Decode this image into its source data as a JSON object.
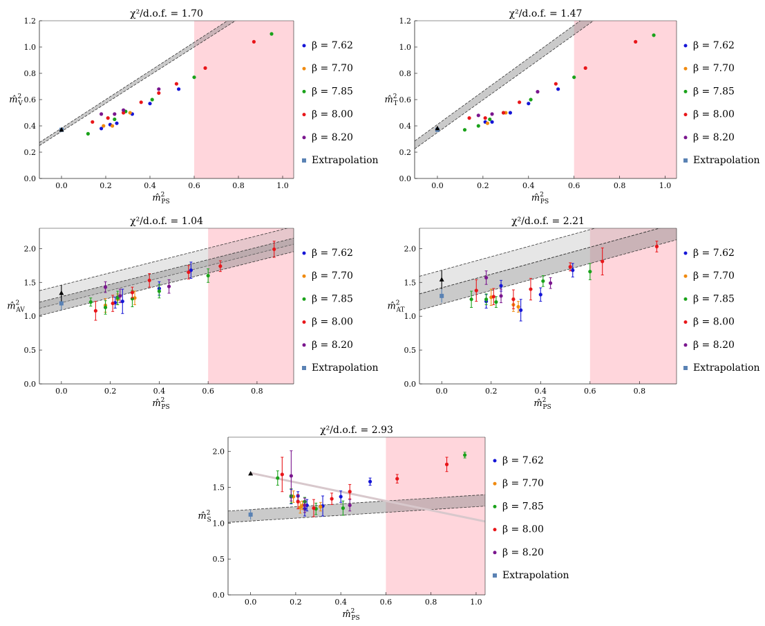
{
  "colors": {
    "7.62": "#1515d6",
    "7.70": "#f08a10",
    "7.85": "#1aa21a",
    "8.00": "#e8161a",
    "8.20": "#7a168e",
    "extrapolation": "#5a82b4",
    "chiral": "#000000",
    "shade": "#ffd6dc"
  },
  "chart_data": [
    {
      "type": "scatter",
      "title": "χ²/d.o.f. = 1.70",
      "xlabel": "m̂²PS",
      "ylabel": "m̂²V",
      "xlim": [
        -0.1,
        1.05
      ],
      "ylim": [
        0,
        1.2
      ],
      "xticks": [
        "0.0",
        "0.2",
        "0.4",
        "0.6",
        "0.8",
        "1.0"
      ],
      "yticks": [
        "0.0",
        "0.2",
        "0.4",
        "0.6",
        "0.8",
        "1.0",
        "1.2"
      ],
      "shaded_region_x": [
        0.6,
        1.05
      ],
      "legend": [
        "β = 7.62",
        "β = 7.70",
        "β = 7.85",
        "β = 8.00",
        "β = 8.20",
        "Extrapolation"
      ],
      "series": [
        {
          "name": "β = 7.62",
          "points": [
            [
              0.18,
              0.38
            ],
            [
              0.22,
              0.41
            ],
            [
              0.25,
              0.42
            ],
            [
              0.32,
              0.49
            ],
            [
              0.4,
              0.57
            ],
            [
              0.53,
              0.68
            ]
          ]
        },
        {
          "name": "β = 7.70",
          "points": [
            [
              0.19,
              0.4
            ],
            [
              0.23,
              0.4
            ],
            [
              0.31,
              0.5
            ]
          ]
        },
        {
          "name": "β = 7.85",
          "points": [
            [
              0.12,
              0.34
            ],
            [
              0.24,
              0.45
            ],
            [
              0.29,
              0.51
            ],
            [
              0.41,
              0.6
            ],
            [
              0.6,
              0.77
            ],
            [
              0.95,
              1.1
            ]
          ]
        },
        {
          "name": "β = 8.00",
          "points": [
            [
              0.14,
              0.43
            ],
            [
              0.21,
              0.46
            ],
            [
              0.28,
              0.5
            ],
            [
              0.36,
              0.58
            ],
            [
              0.44,
              0.65
            ],
            [
              0.52,
              0.72
            ],
            [
              0.65,
              0.84
            ],
            [
              0.87,
              1.04
            ]
          ]
        },
        {
          "name": "β = 8.20",
          "points": [
            [
              0.18,
              0.49
            ],
            [
              0.24,
              0.49
            ],
            [
              0.28,
              0.52
            ],
            [
              0.44,
              0.68
            ]
          ]
        }
      ],
      "extrapolation": [
        0.0,
        0.37
      ],
      "chiral_point": [
        0.0,
        0.37
      ],
      "band": {
        "y0": 0.37,
        "slope": 1.08,
        "w0": 0.012,
        "w1": 0.022,
        "upper_y0": null,
        "upper_slope": null
      }
    },
    {
      "type": "scatter",
      "title": "χ²/d.o.f. = 1.47",
      "xlabel": "m̂²PS",
      "ylabel": "m̂²T",
      "xlim": [
        -0.1,
        1.05
      ],
      "ylim": [
        0,
        1.2
      ],
      "xticks": [
        "0.0",
        "0.2",
        "0.4",
        "0.6",
        "0.8",
        "1.0"
      ],
      "yticks": [
        "0.0",
        "0.2",
        "0.4",
        "0.6",
        "0.8",
        "1.0",
        "1.2"
      ],
      "shaded_region_x": [
        0.6,
        1.05
      ],
      "legend": [
        "β = 7.62",
        "β = 7.70",
        "β = 7.85",
        "β = 8.00",
        "β = 8.20",
        "Extrapolation"
      ],
      "series": [
        {
          "name": "β = 7.62",
          "points": [
            [
              0.21,
              0.43
            ],
            [
              0.24,
              0.43
            ],
            [
              0.32,
              0.5
            ],
            [
              0.4,
              0.57
            ],
            [
              0.53,
              0.68
            ]
          ]
        },
        {
          "name": "β = 7.70",
          "points": [
            [
              0.22,
              0.42
            ],
            [
              0.3,
              0.5
            ]
          ]
        },
        {
          "name": "β = 7.85",
          "points": [
            [
              0.12,
              0.37
            ],
            [
              0.18,
              0.4
            ],
            [
              0.23,
              0.45
            ],
            [
              0.29,
              0.5
            ],
            [
              0.41,
              0.6
            ],
            [
              0.6,
              0.77
            ],
            [
              0.95,
              1.09
            ]
          ]
        },
        {
          "name": "β = 8.00",
          "points": [
            [
              0.14,
              0.46
            ],
            [
              0.21,
              0.46
            ],
            [
              0.29,
              0.5
            ],
            [
              0.36,
              0.58
            ],
            [
              0.52,
              0.72
            ],
            [
              0.65,
              0.84
            ],
            [
              0.87,
              1.04
            ]
          ]
        },
        {
          "name": "β = 8.20",
          "points": [
            [
              0.18,
              0.48
            ],
            [
              0.24,
              0.49
            ],
            [
              0.44,
              0.66
            ]
          ]
        }
      ],
      "extrapolation": [
        0.0,
        0.37
      ],
      "chiral_point": [
        0.0,
        0.38
      ],
      "band": {
        "y0": 0.38,
        "slope": 1.25,
        "w0": 0.03,
        "w1": 0.04,
        "upper_y0": null,
        "upper_slope": null
      }
    },
    {
      "type": "scatter",
      "title": "χ²/d.o.f. = 1.04",
      "xlabel": "m̂²PS",
      "ylabel": "m̂²AV",
      "xlim": [
        -0.09,
        0.95
      ],
      "ylim": [
        0,
        2.3
      ],
      "xticks": [
        "0.0",
        "0.2",
        "0.4",
        "0.6",
        "0.8"
      ],
      "yticks": [
        "0.0",
        "0.5",
        "1.0",
        "1.5",
        "2.0"
      ],
      "shaded_region_x": [
        0.6,
        0.95
      ],
      "legend": [
        "β = 7.62",
        "β = 7.70",
        "β = 7.85",
        "β = 8.00",
        "β = 8.20",
        "Extrapolation"
      ],
      "series": [
        {
          "name": "β = 7.62",
          "points": [
            [
              0.22,
              1.2,
              0.08
            ],
            [
              0.25,
              1.22,
              0.18
            ],
            [
              0.4,
              1.41,
              0.1
            ],
            [
              0.53,
              1.68,
              0.12
            ]
          ]
        },
        {
          "name": "β = 7.70",
          "points": [
            [
              0.18,
              1.16,
              0.1
            ],
            [
              0.23,
              1.25,
              0.08
            ],
            [
              0.3,
              1.27,
              0.1
            ]
          ]
        },
        {
          "name": "β = 7.85",
          "points": [
            [
              0.12,
              1.21,
              0.06
            ],
            [
              0.18,
              1.13,
              0.1
            ],
            [
              0.23,
              1.27,
              0.1
            ],
            [
              0.29,
              1.26,
              0.12
            ],
            [
              0.4,
              1.37,
              0.1
            ],
            [
              0.6,
              1.6,
              0.1
            ]
          ]
        },
        {
          "name": "β = 8.00",
          "points": [
            [
              0.14,
              1.08,
              0.14
            ],
            [
              0.21,
              1.19,
              0.12
            ],
            [
              0.29,
              1.35,
              0.08
            ],
            [
              0.36,
              1.53,
              0.1
            ],
            [
              0.52,
              1.65,
              0.1
            ],
            [
              0.65,
              1.74,
              0.08
            ],
            [
              0.87,
              1.99,
              0.12
            ]
          ]
        },
        {
          "name": "β = 8.20",
          "points": [
            [
              0.18,
              1.43,
              0.08
            ],
            [
              0.24,
              1.3,
              0.1
            ],
            [
              0.44,
              1.44,
              0.1
            ]
          ]
        }
      ],
      "extrapolation": [
        0.0,
        1.19,
        0.1
      ],
      "chiral_point": [
        0.0,
        1.34,
        0.12
      ],
      "band": {
        "y0": 1.19,
        "slope": 0.91,
        "w0": 0.1,
        "w1": 0.1,
        "upper_y0": 1.33,
        "upper_slope": 0.91
      }
    },
    {
      "type": "scatter",
      "title": "χ²/d.o.f. = 2.21",
      "xlabel": "m̂²PS",
      "ylabel": "m̂²AT",
      "xlim": [
        -0.09,
        0.95
      ],
      "ylim": [
        0,
        2.3
      ],
      "xticks": [
        "0.0",
        "0.2",
        "0.4",
        "0.6",
        "0.8"
      ],
      "yticks": [
        "0.0",
        "0.5",
        "1.0",
        "1.5",
        "2.0"
      ],
      "shaded_region_x": [
        0.6,
        0.95
      ],
      "legend": [
        "β = 7.62",
        "β = 7.70",
        "β = 7.85",
        "β = 8.00",
        "β = 8.20",
        "Extrapolation"
      ],
      "series": [
        {
          "name": "β = 7.62",
          "points": [
            [
              0.18,
              1.22,
              0.1
            ],
            [
              0.24,
              1.45,
              0.08
            ],
            [
              0.32,
              1.09,
              0.16
            ],
            [
              0.4,
              1.32,
              0.1
            ],
            [
              0.53,
              1.68,
              0.1
            ]
          ]
        },
        {
          "name": "β = 7.70",
          "points": [
            [
              0.2,
              1.28,
              0.12
            ],
            [
              0.29,
              1.17,
              0.1
            ],
            [
              0.31,
              1.14,
              0.08
            ]
          ]
        },
        {
          "name": "β = 7.85",
          "points": [
            [
              0.12,
              1.25,
              0.12
            ],
            [
              0.18,
              1.25,
              0.08
            ],
            [
              0.22,
              1.21,
              0.08
            ],
            [
              0.41,
              1.52,
              0.08
            ],
            [
              0.6,
              1.66,
              0.12
            ]
          ]
        },
        {
          "name": "β = 8.00",
          "points": [
            [
              0.14,
              1.38,
              0.16
            ],
            [
              0.21,
              1.29,
              0.12
            ],
            [
              0.29,
              1.25,
              0.14
            ],
            [
              0.36,
              1.4,
              0.16
            ],
            [
              0.52,
              1.73,
              0.06
            ],
            [
              0.65,
              1.81,
              0.2
            ],
            [
              0.87,
              2.03,
              0.08
            ]
          ]
        },
        {
          "name": "β = 8.20",
          "points": [
            [
              0.18,
              1.57,
              0.1
            ],
            [
              0.24,
              1.3,
              0.1
            ],
            [
              0.44,
              1.49,
              0.08
            ]
          ]
        }
      ],
      "extrapolation": [
        0.0,
        1.3,
        0.1
      ],
      "chiral_point": [
        0.0,
        1.54,
        0.14
      ],
      "band": {
        "y0": 1.3,
        "slope": 1.0,
        "w0": 0.12,
        "w1": 0.12,
        "upper_y0": 1.55,
        "upper_slope": 1.0
      }
    },
    {
      "type": "scatter",
      "title": "χ²/d.o.f. = 2.93",
      "xlabel": "m̂²PS",
      "ylabel": "m̂²S",
      "xlim": [
        -0.1,
        1.04
      ],
      "ylim": [
        0,
        2.2
      ],
      "xticks": [
        "0.0",
        "0.2",
        "0.4",
        "0.6",
        "0.8",
        "1.0"
      ],
      "yticks": [
        "0.0",
        "0.5",
        "1.0",
        "1.5",
        "2.0"
      ],
      "shaded_region_x": [
        0.6,
        1.04
      ],
      "legend": [
        "β = 7.62",
        "β = 7.70",
        "β = 7.85",
        "β = 8.00",
        "β = 8.20",
        "Extrapolation"
      ],
      "series": [
        {
          "name": "β = 7.62",
          "points": [
            [
              0.18,
              1.37,
              0.1
            ],
            [
              0.21,
              1.38,
              0.06
            ],
            [
              0.24,
              1.2,
              0.1
            ],
            [
              0.25,
              1.25,
              0.08
            ],
            [
              0.32,
              1.24,
              0.14
            ],
            [
              0.4,
              1.37,
              0.08
            ],
            [
              0.53,
              1.58,
              0.05
            ]
          ]
        },
        {
          "name": "β = 7.70",
          "points": [
            [
              0.19,
              1.37,
              0.08
            ],
            [
              0.22,
              1.22,
              0.08
            ],
            [
              0.23,
              1.25,
              0.06
            ],
            [
              0.31,
              1.23,
              0.06
            ]
          ]
        },
        {
          "name": "β = 7.85",
          "points": [
            [
              0.12,
              1.63,
              0.1
            ],
            [
              0.18,
              1.38,
              0.1
            ],
            [
              0.24,
              1.3,
              0.06
            ],
            [
              0.29,
              1.2,
              0.08
            ],
            [
              0.41,
              1.21,
              0.1
            ],
            [
              0.95,
              1.95,
              0.04
            ]
          ]
        },
        {
          "name": "β = 8.00",
          "points": [
            [
              0.14,
              1.68,
              0.24
            ],
            [
              0.21,
              1.3,
              0.1
            ],
            [
              0.28,
              1.21,
              0.12
            ],
            [
              0.36,
              1.34,
              0.08
            ],
            [
              0.44,
              1.44,
              0.1
            ],
            [
              0.65,
              1.62,
              0.06
            ],
            [
              0.87,
              1.82,
              0.1
            ]
          ]
        },
        {
          "name": "β = 8.20",
          "points": [
            [
              0.18,
              1.66,
              0.35
            ],
            [
              0.24,
              1.25,
              0.1
            ],
            [
              0.44,
              1.25,
              0.08
            ]
          ]
        }
      ],
      "extrapolation": [
        0.0,
        1.12,
        0.07
      ],
      "chiral_point": [
        0.0,
        1.69,
        0.0
      ],
      "band": {
        "y0": 1.11,
        "slope": 0.2,
        "w0": 0.08,
        "w1": 0.08,
        "upper_y0": null,
        "upper_slope": null
      },
      "light_line": {
        "y0": 1.7,
        "slope": -0.65
      }
    }
  ]
}
